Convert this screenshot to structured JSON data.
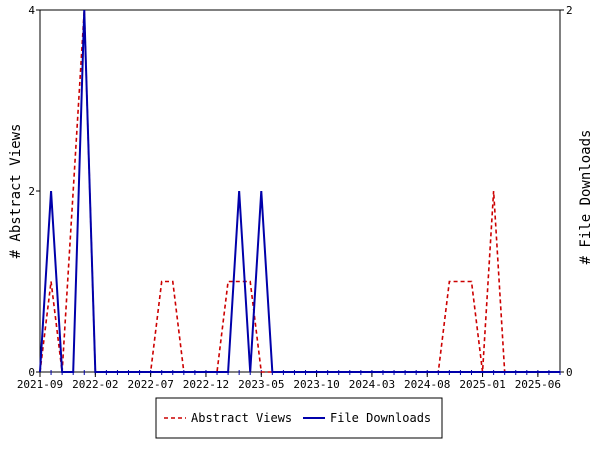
{
  "chart_data": {
    "type": "line",
    "ylabel_left": "# Abstract Views",
    "ylabel_right": "# File Downloads",
    "ylim_left": [
      0,
      4
    ],
    "ylim_right": [
      0,
      2
    ],
    "yticks_left": [
      "0",
      "2",
      "4"
    ],
    "yticks_right": [
      "0",
      "2"
    ],
    "xticks": [
      "2021-09",
      "2022-02",
      "2022-07",
      "2022-12",
      "2023-05",
      "2023-10",
      "2024-03",
      "2024-08",
      "2025-01",
      "2025-06"
    ],
    "x": [
      "2021-09",
      "2021-10",
      "2021-11",
      "2021-12",
      "2022-01",
      "2022-02",
      "2022-03",
      "2022-04",
      "2022-05",
      "2022-06",
      "2022-07",
      "2022-08",
      "2022-09",
      "2022-10",
      "2022-11",
      "2022-12",
      "2023-01",
      "2023-02",
      "2023-03",
      "2023-04",
      "2023-05",
      "2023-06",
      "2023-07",
      "2023-08",
      "2023-09",
      "2023-10",
      "2023-11",
      "2023-12",
      "2024-01",
      "2024-02",
      "2024-03",
      "2024-04",
      "2024-05",
      "2024-06",
      "2024-07",
      "2024-08",
      "2024-09",
      "2024-10",
      "2024-11",
      "2024-12",
      "2025-01",
      "2025-02",
      "2025-03",
      "2025-04",
      "2025-05",
      "2025-06",
      "2025-07",
      "2025-08"
    ],
    "series": [
      {
        "name": "Abstract Views",
        "axis": "left",
        "color": "#cc0000",
        "dash": true,
        "values": [
          0,
          1,
          0,
          2,
          4,
          0,
          0,
          0,
          0,
          0,
          0,
          1,
          1,
          0,
          0,
          0,
          0,
          1,
          1,
          1,
          0,
          0,
          0,
          0,
          0,
          0,
          0,
          0,
          0,
          0,
          0,
          0,
          0,
          0,
          0,
          0,
          0,
          1,
          1,
          1,
          0,
          2,
          0,
          0,
          0,
          0,
          0,
          0
        ]
      },
      {
        "name": "File Downloads",
        "axis": "right",
        "color": "#0000aa",
        "dash": false,
        "values": [
          0,
          1,
          0,
          0,
          2,
          0,
          0,
          0,
          0,
          0,
          0,
          0,
          0,
          0,
          0,
          0,
          0,
          0,
          1,
          0,
          1,
          0,
          0,
          0,
          0,
          0,
          0,
          0,
          0,
          0,
          0,
          0,
          0,
          0,
          0,
          0,
          0,
          0,
          0,
          0,
          0,
          0,
          0,
          0,
          0,
          0,
          0,
          0
        ]
      }
    ],
    "grid": false,
    "legend_position": "bottom"
  }
}
